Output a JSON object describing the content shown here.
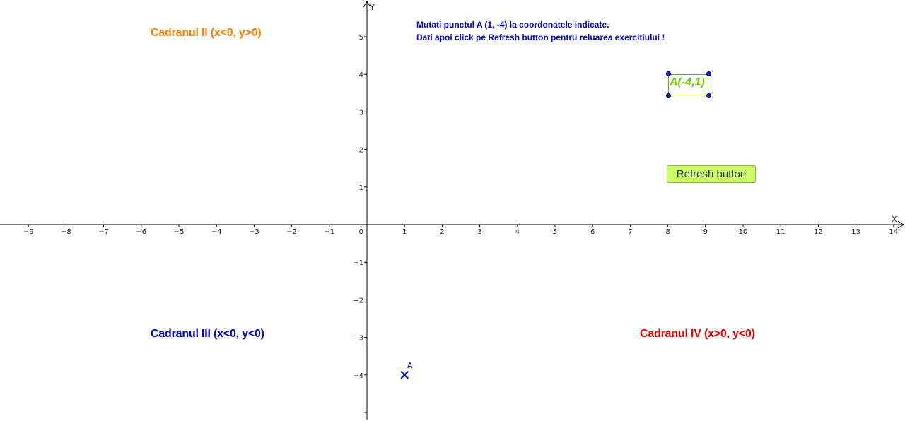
{
  "instructions": {
    "line1": "Mutati  punctul A (1, -4) la coordonatele indicate.",
    "line2": "Dati apoi click pe Refresh button pentru reluarea exercitiului !"
  },
  "quadrants": {
    "q2": {
      "label": "Cadranul II (x<0, y>0)",
      "color": "#ff7f00"
    },
    "q3": {
      "label": "Cadranul III (x<0, y<0)",
      "color": "#0000cc"
    },
    "q4": {
      "label": "Cadranul IV (x>0, y<0)",
      "color": "#ee0000"
    }
  },
  "refresh_button": {
    "label": "Refresh button",
    "color": "#ccff66"
  },
  "target": {
    "label": "A(-4,1)",
    "color": "#66cc00"
  },
  "point_A": {
    "name": "A",
    "x": 1,
    "y": -4,
    "color": "#0000cc"
  },
  "axes": {
    "x_label": "X",
    "y_label": "Y",
    "x_ticks": [
      -9,
      -8,
      -7,
      -6,
      -5,
      -4,
      -3,
      -2,
      -1,
      1,
      2,
      3,
      4,
      5,
      6,
      7,
      8,
      9,
      10,
      11,
      12,
      13,
      14
    ],
    "y_ticks": [
      5,
      4,
      3,
      2,
      1,
      -1,
      -2,
      -3,
      -4
    ],
    "origin_label": "0",
    "xlim": [
      -9.7,
      14.3
    ],
    "ylim": [
      -4.9,
      6.0
    ]
  }
}
